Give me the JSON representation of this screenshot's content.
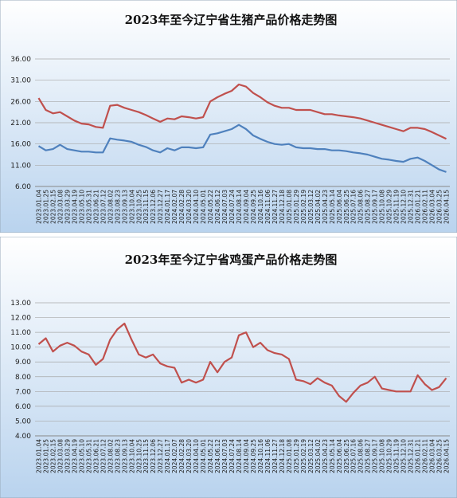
{
  "chart_data": [
    {
      "type": "line",
      "title": "2023年至今辽宁省生猪产品价格走势图",
      "categories": [
        "2023.01.04",
        "2023.01.25",
        "2023.02.15",
        "2023.03.08",
        "2023.03.29",
        "2023.04.19",
        "2023.05.10",
        "2023.05.31",
        "2023.06.21",
        "2023.07.12",
        "2023.08.02",
        "2023.08.23",
        "2023.09.13",
        "2023.10.04",
        "2023.10.25",
        "2023.11.15",
        "2023.12.06",
        "2023.12.27",
        "2024.01.17",
        "2024.02.07",
        "2024.02.28",
        "2024.03.20",
        "2024.04.10",
        "2024.05.01",
        "2024.05.22",
        "2024.06.12",
        "2024.07.03",
        "2024.07.24",
        "2024.08.14",
        "2024.09.04",
        "2024.09.25",
        "2024.10.16",
        "2024.11.06",
        "2024.11.27",
        "2024.12.18",
        "2025.01.08",
        "2025.01.29",
        "2025.02.19",
        "2025.03.12",
        "2025.04.02",
        "2025.04.23",
        "2025.05.14",
        "2025.06.04",
        "2025.06.25",
        "2025.07.16",
        "2025.08.06",
        "2025.08.27",
        "2025.09.17",
        "2025.10.08",
        "2025.10.29",
        "2025.11.19",
        "2025.12.10",
        "2025.12.31",
        "2026.01.21",
        "2026.02.11",
        "2026.03.04",
        "2026.03.25",
        "2026.04.15"
      ],
      "series": [
        {
          "color": "#c0504d",
          "values": [
            26.8,
            24.0,
            23.2,
            23.5,
            22.5,
            21.5,
            20.8,
            20.6,
            20.0,
            19.8,
            25.0,
            25.2,
            24.5,
            24.0,
            23.5,
            22.8,
            22.0,
            21.2,
            22.0,
            21.8,
            22.5,
            22.3,
            22.0,
            22.3,
            26.0,
            27.0,
            27.8,
            28.5,
            30.0,
            29.5,
            28.0,
            27.0,
            25.8,
            25.0,
            24.5,
            24.5,
            24.0,
            24.0,
            24.0,
            23.5,
            23.0,
            23.0,
            22.7,
            22.5,
            22.3,
            22.0,
            21.5,
            21.0,
            20.5,
            20.0,
            19.5,
            19.0,
            19.8,
            19.8,
            19.5,
            18.8,
            18.0,
            17.2
          ]
        },
        {
          "color": "#4f81bd",
          "values": [
            15.5,
            14.5,
            14.8,
            15.8,
            14.8,
            14.5,
            14.2,
            14.2,
            14.0,
            14.0,
            17.3,
            17.0,
            16.8,
            16.5,
            15.8,
            15.3,
            14.5,
            14.0,
            15.0,
            14.5,
            15.2,
            15.2,
            15.0,
            15.2,
            18.2,
            18.5,
            19.0,
            19.5,
            20.5,
            19.5,
            18.0,
            17.2,
            16.5,
            16.0,
            15.8,
            16.0,
            15.2,
            15.0,
            15.0,
            14.8,
            14.8,
            14.5,
            14.5,
            14.3,
            14.0,
            13.8,
            13.5,
            13.0,
            12.5,
            12.3,
            12.0,
            11.8,
            12.5,
            12.8,
            12.0,
            11.0,
            10.0,
            9.4
          ]
        }
      ],
      "ylim": [
        6,
        36
      ],
      "yticks": [
        {
          "value": 6,
          "label": "6.00"
        },
        {
          "value": 11,
          "label": "11.00"
        },
        {
          "value": 16,
          "label": "16.00"
        },
        {
          "value": 21,
          "label": "21.00"
        },
        {
          "value": 26,
          "label": "26.00"
        },
        {
          "value": 31,
          "label": "31.00"
        },
        {
          "value": 36,
          "label": "36.00"
        }
      ],
      "grid": true
    },
    {
      "type": "line",
      "title": "2023年至今辽宁省鸡蛋产品价格走势图",
      "categories": [
        "2023.01.04",
        "2023.01.25",
        "2023.02.15",
        "2023.03.08",
        "2023.03.29",
        "2023.04.19",
        "2023.05.10",
        "2023.05.31",
        "2023.06.21",
        "2023.07.12",
        "2023.08.02",
        "2023.08.23",
        "2023.09.13",
        "2023.10.04",
        "2023.10.25",
        "2023.11.15",
        "2023.12.06",
        "2023.12.27",
        "2024.01.17",
        "2024.02.07",
        "2024.02.28",
        "2024.03.20",
        "2024.04.10",
        "2024.05.01",
        "2024.05.22",
        "2024.06.12",
        "2024.07.03",
        "2024.07.24",
        "2024.08.14",
        "2024.09.04",
        "2024.09.25",
        "2024.10.16",
        "2024.11.06",
        "2024.11.27",
        "2024.12.18",
        "2025.01.08",
        "2025.01.29",
        "2025.02.19",
        "2025.03.12",
        "2025.04.02",
        "2025.04.23",
        "2025.05.14",
        "2025.06.04",
        "2025.06.25",
        "2025.07.16",
        "2025.08.06",
        "2025.08.27",
        "2025.09.17",
        "2025.10.08",
        "2025.10.29",
        "2025.11.19",
        "2025.12.10",
        "2025.12.31",
        "2026.01.21",
        "2026.02.11",
        "2026.03.04",
        "2026.03.25",
        "2026.04.15"
      ],
      "series": [
        {
          "color": "#c0504d",
          "values": [
            10.2,
            10.6,
            9.7,
            10.1,
            10.3,
            10.1,
            9.7,
            9.5,
            8.8,
            9.2,
            10.5,
            11.2,
            11.6,
            10.5,
            9.5,
            9.3,
            9.5,
            8.9,
            8.7,
            8.6,
            7.6,
            7.8,
            7.6,
            7.8,
            9.0,
            8.3,
            9.0,
            9.3,
            10.8,
            11.0,
            10.0,
            10.3,
            9.8,
            9.6,
            9.5,
            9.2,
            7.8,
            7.7,
            7.5,
            7.9,
            7.6,
            7.4,
            6.7,
            6.3,
            6.9,
            7.4,
            7.6,
            8.0,
            7.2,
            7.1,
            7.0,
            7.0,
            7.0,
            8.1,
            7.5,
            7.1,
            7.3,
            7.9
          ]
        }
      ],
      "ylim": [
        4,
        13
      ],
      "yticks": [
        {
          "value": 4,
          "label": "4.00"
        },
        {
          "value": 5,
          "label": "5.00"
        },
        {
          "value": 6,
          "label": "6.00"
        },
        {
          "value": 7,
          "label": "7.00"
        },
        {
          "value": 8,
          "label": "8.00"
        },
        {
          "value": 9,
          "label": "9.00"
        },
        {
          "value": 10,
          "label": "10.00"
        },
        {
          "value": 11,
          "label": "11.00"
        },
        {
          "value": 12,
          "label": "12.00"
        },
        {
          "value": 13,
          "label": "13.00"
        }
      ],
      "grid": true
    }
  ]
}
